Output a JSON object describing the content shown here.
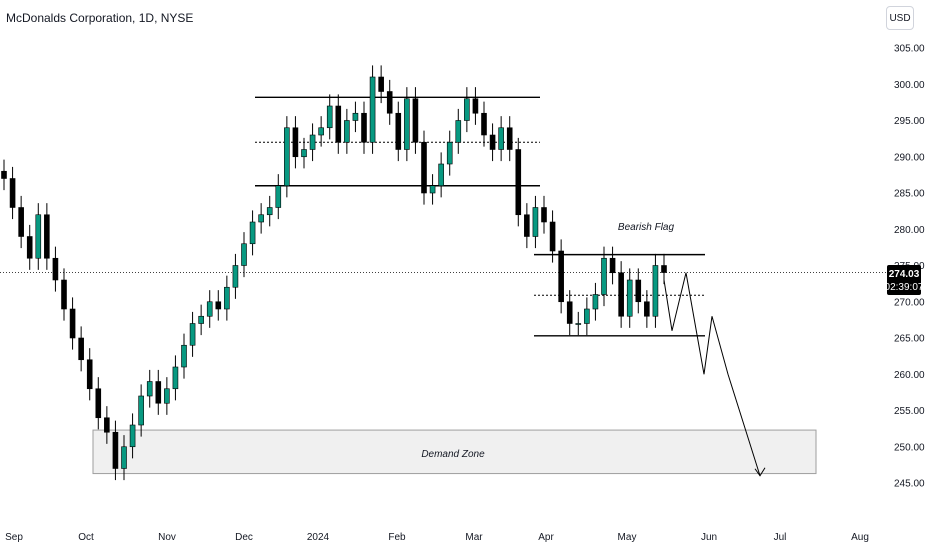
{
  "header": {
    "symbol_title": "McDonalds Corporation, 1D, NYSE",
    "currency": "USD"
  },
  "price_label": {
    "price": "274.03",
    "countdown": "02:39:07",
    "bg_color": "#000000"
  },
  "colors": {
    "up": "#089981",
    "down": "#000000",
    "accent": "#000000"
  },
  "chart_data": {
    "type": "candlestick",
    "title": "McDonalds Corporation, 1D, NYSE",
    "ylim": [
      243,
      308
    ],
    "y_ticks": [
      "305.00",
      "300.00",
      "295.00",
      "290.00",
      "285.00",
      "280.00",
      "275.00",
      "270.00",
      "265.00",
      "260.00",
      "255.00",
      "250.00",
      "245.00"
    ],
    "x_ticks": [
      "Sep",
      "Oct",
      "Nov",
      "Dec",
      "2024",
      "Feb",
      "Mar",
      "Apr",
      "May",
      "Jun",
      "Jul",
      "Aug"
    ],
    "last_price": 274.03,
    "grid": false,
    "close_series": [
      {
        "date": "Sep",
        "close": 287
      },
      {
        "date": "Sep",
        "close": 283
      },
      {
        "date": "Sep",
        "close": 279
      },
      {
        "date": "Sep",
        "close": 276
      },
      {
        "date": "Sep",
        "close": 282
      },
      {
        "date": "Sep",
        "close": 276
      },
      {
        "date": "Sep",
        "close": 273
      },
      {
        "date": "Sep",
        "close": 269
      },
      {
        "date": "Sep",
        "close": 265
      },
      {
        "date": "Sep",
        "close": 262
      },
      {
        "date": "Oct",
        "close": 258
      },
      {
        "date": "Oct",
        "close": 254
      },
      {
        "date": "Oct",
        "close": 252
      },
      {
        "date": "Oct",
        "close": 247
      },
      {
        "date": "Oct",
        "close": 250
      },
      {
        "date": "Oct",
        "close": 253
      },
      {
        "date": "Oct",
        "close": 257
      },
      {
        "date": "Oct",
        "close": 259
      },
      {
        "date": "Oct",
        "close": 256
      },
      {
        "date": "Oct",
        "close": 258
      },
      {
        "date": "Nov",
        "close": 261
      },
      {
        "date": "Nov",
        "close": 264
      },
      {
        "date": "Nov",
        "close": 267
      },
      {
        "date": "Nov",
        "close": 268
      },
      {
        "date": "Nov",
        "close": 270
      },
      {
        "date": "Nov",
        "close": 269
      },
      {
        "date": "Nov",
        "close": 272
      },
      {
        "date": "Nov",
        "close": 275
      },
      {
        "date": "Nov",
        "close": 278
      },
      {
        "date": "Nov",
        "close": 281
      },
      {
        "date": "Dec",
        "close": 282
      },
      {
        "date": "Dec",
        "close": 283
      },
      {
        "date": "Dec",
        "close": 286
      },
      {
        "date": "Dec",
        "close": 294
      },
      {
        "date": "Dec",
        "close": 290
      },
      {
        "date": "Dec",
        "close": 291
      },
      {
        "date": "Dec",
        "close": 293
      },
      {
        "date": "Dec",
        "close": 294
      },
      {
        "date": "Dec",
        "close": 297
      },
      {
        "date": "Dec",
        "close": 292
      },
      {
        "date": "2024",
        "close": 295
      },
      {
        "date": "2024",
        "close": 296
      },
      {
        "date": "2024",
        "close": 292
      },
      {
        "date": "2024",
        "close": 301
      },
      {
        "date": "2024",
        "close": 299
      },
      {
        "date": "2024",
        "close": 296
      },
      {
        "date": "2024",
        "close": 291
      },
      {
        "date": "Feb",
        "close": 298
      },
      {
        "date": "Feb",
        "close": 292
      },
      {
        "date": "Feb",
        "close": 285
      },
      {
        "date": "Feb",
        "close": 286
      },
      {
        "date": "Feb",
        "close": 289
      },
      {
        "date": "Feb",
        "close": 292
      },
      {
        "date": "Feb",
        "close": 295
      },
      {
        "date": "Mar",
        "close": 298
      },
      {
        "date": "Mar",
        "close": 296
      },
      {
        "date": "Mar",
        "close": 293
      },
      {
        "date": "Mar",
        "close": 291
      },
      {
        "date": "Mar",
        "close": 294
      },
      {
        "date": "Mar",
        "close": 291
      },
      {
        "date": "Mar",
        "close": 282
      },
      {
        "date": "Mar",
        "close": 279
      },
      {
        "date": "Mar",
        "close": 283
      },
      {
        "date": "Mar",
        "close": 281
      },
      {
        "date": "Apr",
        "close": 277
      },
      {
        "date": "Apr",
        "close": 270
      },
      {
        "date": "Apr",
        "close": 267
      },
      {
        "date": "Apr",
        "close": 267
      },
      {
        "date": "Apr",
        "close": 269
      },
      {
        "date": "Apr",
        "close": 271
      },
      {
        "date": "Apr",
        "close": 276
      },
      {
        "date": "Apr",
        "close": 274
      },
      {
        "date": "May",
        "close": 268
      },
      {
        "date": "May",
        "close": 273
      },
      {
        "date": "May",
        "close": 270
      },
      {
        "date": "May",
        "close": 268
      },
      {
        "date": "May",
        "close": 275
      },
      {
        "date": "May",
        "close": 274.03
      }
    ],
    "levels": [
      {
        "name": "range-top",
        "price": 298.2,
        "style": "solid"
      },
      {
        "name": "range-mid",
        "price": 292,
        "style": "dotted"
      },
      {
        "name": "range-bottom",
        "price": 286,
        "style": "solid"
      },
      {
        "name": "flag-top",
        "price": 276.5,
        "style": "solid"
      },
      {
        "name": "flag-mid",
        "price": 270.9,
        "style": "dotted"
      },
      {
        "name": "flag-bottom",
        "price": 265.3,
        "style": "solid"
      }
    ],
    "zones": [
      {
        "label": "Demand Zone",
        "from": 246.3,
        "to": 252.3
      }
    ],
    "annotations": [
      {
        "text": "Bearish Flag"
      },
      {
        "text": "Demand Zone"
      }
    ],
    "projection": [
      {
        "date": "May",
        "price": 273
      },
      {
        "date": "May",
        "price": 266
      },
      {
        "date": "May",
        "price": 274
      },
      {
        "date": "Jun",
        "price": 260
      },
      {
        "date": "Jun",
        "price": 268
      },
      {
        "date": "Jun",
        "price": 260
      },
      {
        "date": "Jul",
        "price": 246
      }
    ]
  }
}
